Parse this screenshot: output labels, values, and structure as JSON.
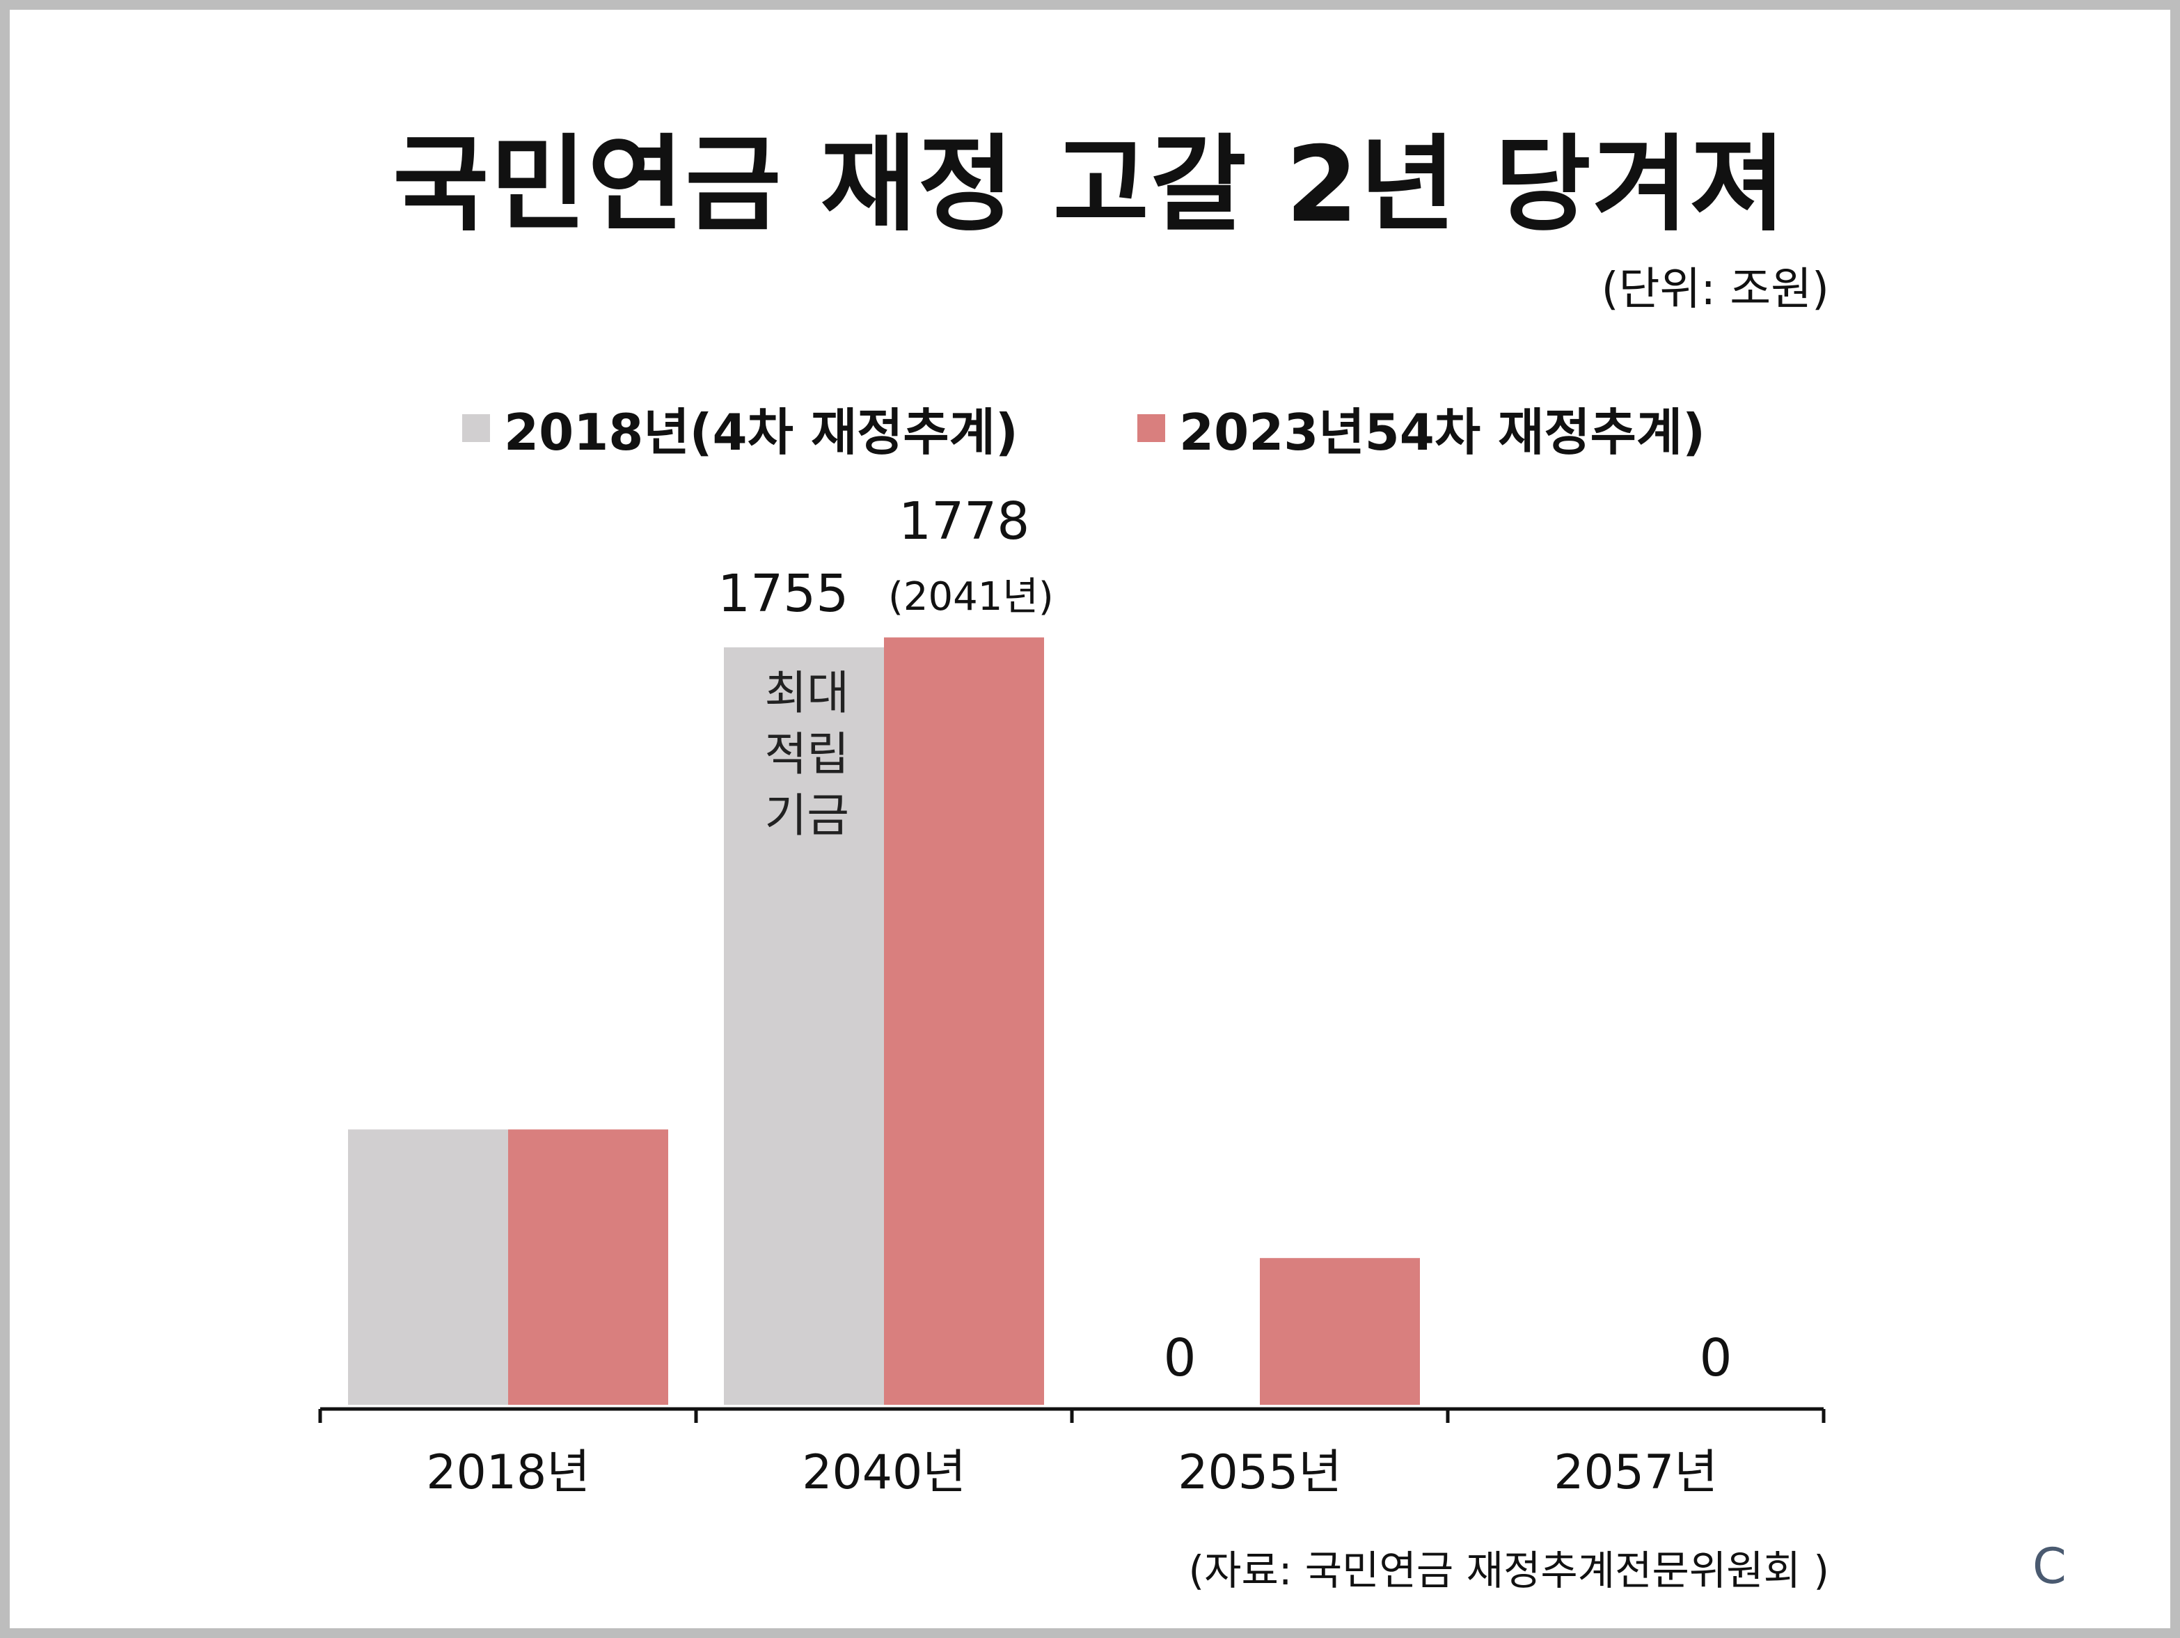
{
  "title": "국민연금 재정 고갈 2년 당겨져",
  "unit": "(단위: 조원)",
  "source": "(자료: 국민연금 재정추계전문위원회 )",
  "mark": "C",
  "chart_data": {
    "type": "bar",
    "categories": [
      "2018년",
      "2040년",
      "2055년",
      "2057년"
    ],
    "series": [
      {
        "name": "2018년(4차 재정추계)",
        "color": "#d1cfd0",
        "values": [
          638,
          1755,
          0,
          null
        ]
      },
      {
        "name": "2023년54차 재정추계)",
        "color": "#d97f7e",
        "values": [
          638,
          1778,
          340,
          0
        ]
      }
    ],
    "ylim": [
      0,
      1900
    ],
    "grid": false,
    "legend_position": "top",
    "annotations": {
      "v1755": "1755",
      "v1778": "1778",
      "v1778_note": "(2041년)",
      "zero_a": "0",
      "zero_b": "0",
      "bar_label": [
        "최대",
        "적립",
        "기금"
      ]
    }
  }
}
